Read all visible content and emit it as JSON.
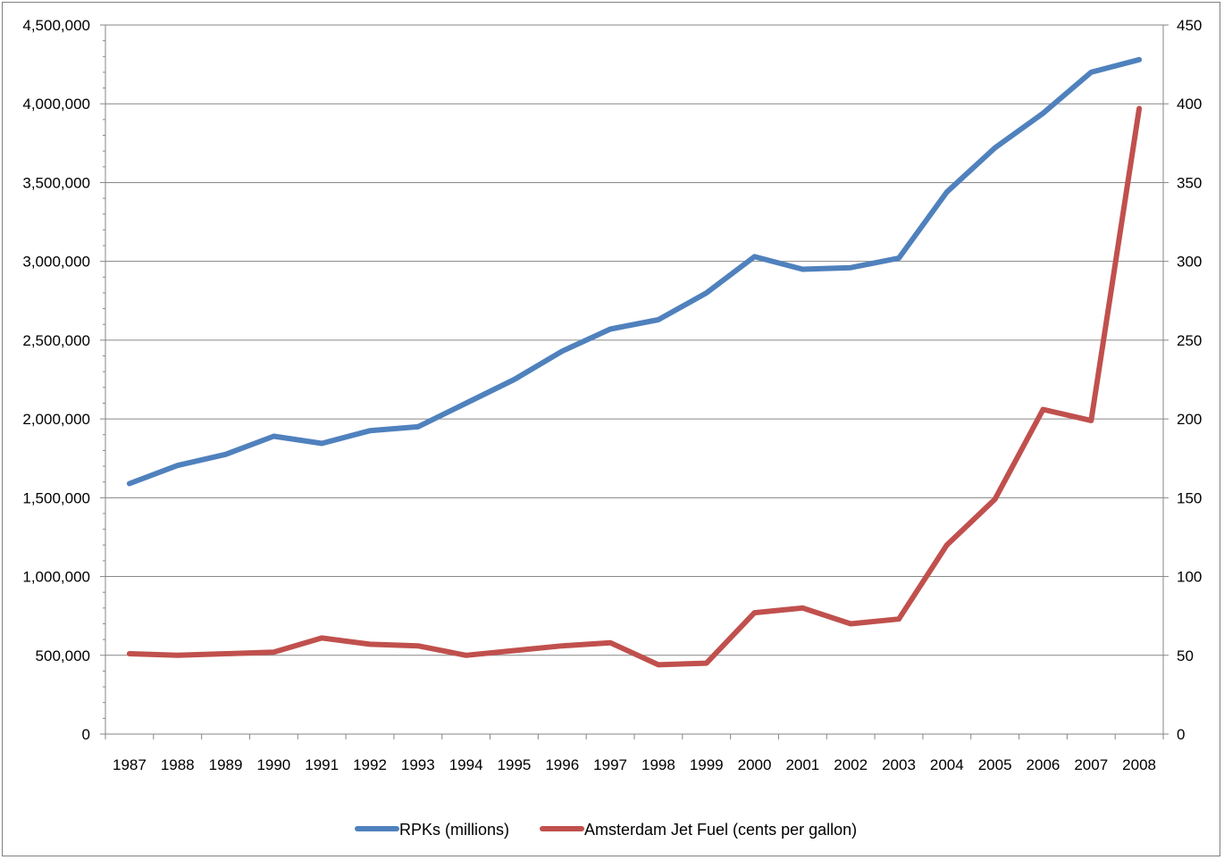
{
  "chart_data": {
    "type": "line",
    "categories": [
      "1987",
      "1988",
      "1989",
      "1990",
      "1991",
      "1992",
      "1993",
      "1994",
      "1995",
      "1996",
      "1997",
      "1998",
      "1999",
      "2000",
      "2001",
      "2002",
      "2003",
      "2004",
      "2005",
      "2006",
      "2007",
      "2008"
    ],
    "series": [
      {
        "name": "RPKs (millions)",
        "axis": "left",
        "color": "#4f81bd",
        "values": [
          1590000,
          1705000,
          1775000,
          1890000,
          1845000,
          1925000,
          1950000,
          2100000,
          2250000,
          2430000,
          2570000,
          2630000,
          2800000,
          3030000,
          2950000,
          2960000,
          3020000,
          3440000,
          3720000,
          3940000,
          4200000,
          4280000
        ]
      },
      {
        "name": "Amsterdam Jet Fuel (cents per gallon)",
        "axis": "right",
        "color": "#c0504d",
        "values": [
          51,
          50,
          51,
          52,
          61,
          57,
          56,
          50,
          53,
          56,
          58,
          44,
          45,
          77,
          80,
          70,
          73,
          120,
          149,
          206,
          199,
          397
        ]
      }
    ],
    "y_left": {
      "min": 0,
      "max": 4500000,
      "tick_labels": [
        "0",
        "500,000",
        "1,000,000",
        "1,500,000",
        "2,000,000",
        "2,500,000",
        "3,000,000",
        "3,500,000",
        "4,000,000",
        "4,500,000"
      ]
    },
    "y_right": {
      "min": 0,
      "max": 450,
      "tick_labels": [
        "0",
        "50",
        "100",
        "150",
        "200",
        "250",
        "300",
        "350",
        "400",
        "450"
      ]
    },
    "gridlines": true,
    "legend_position": "bottom",
    "title": "",
    "xlabel": "",
    "ylabel": ""
  }
}
